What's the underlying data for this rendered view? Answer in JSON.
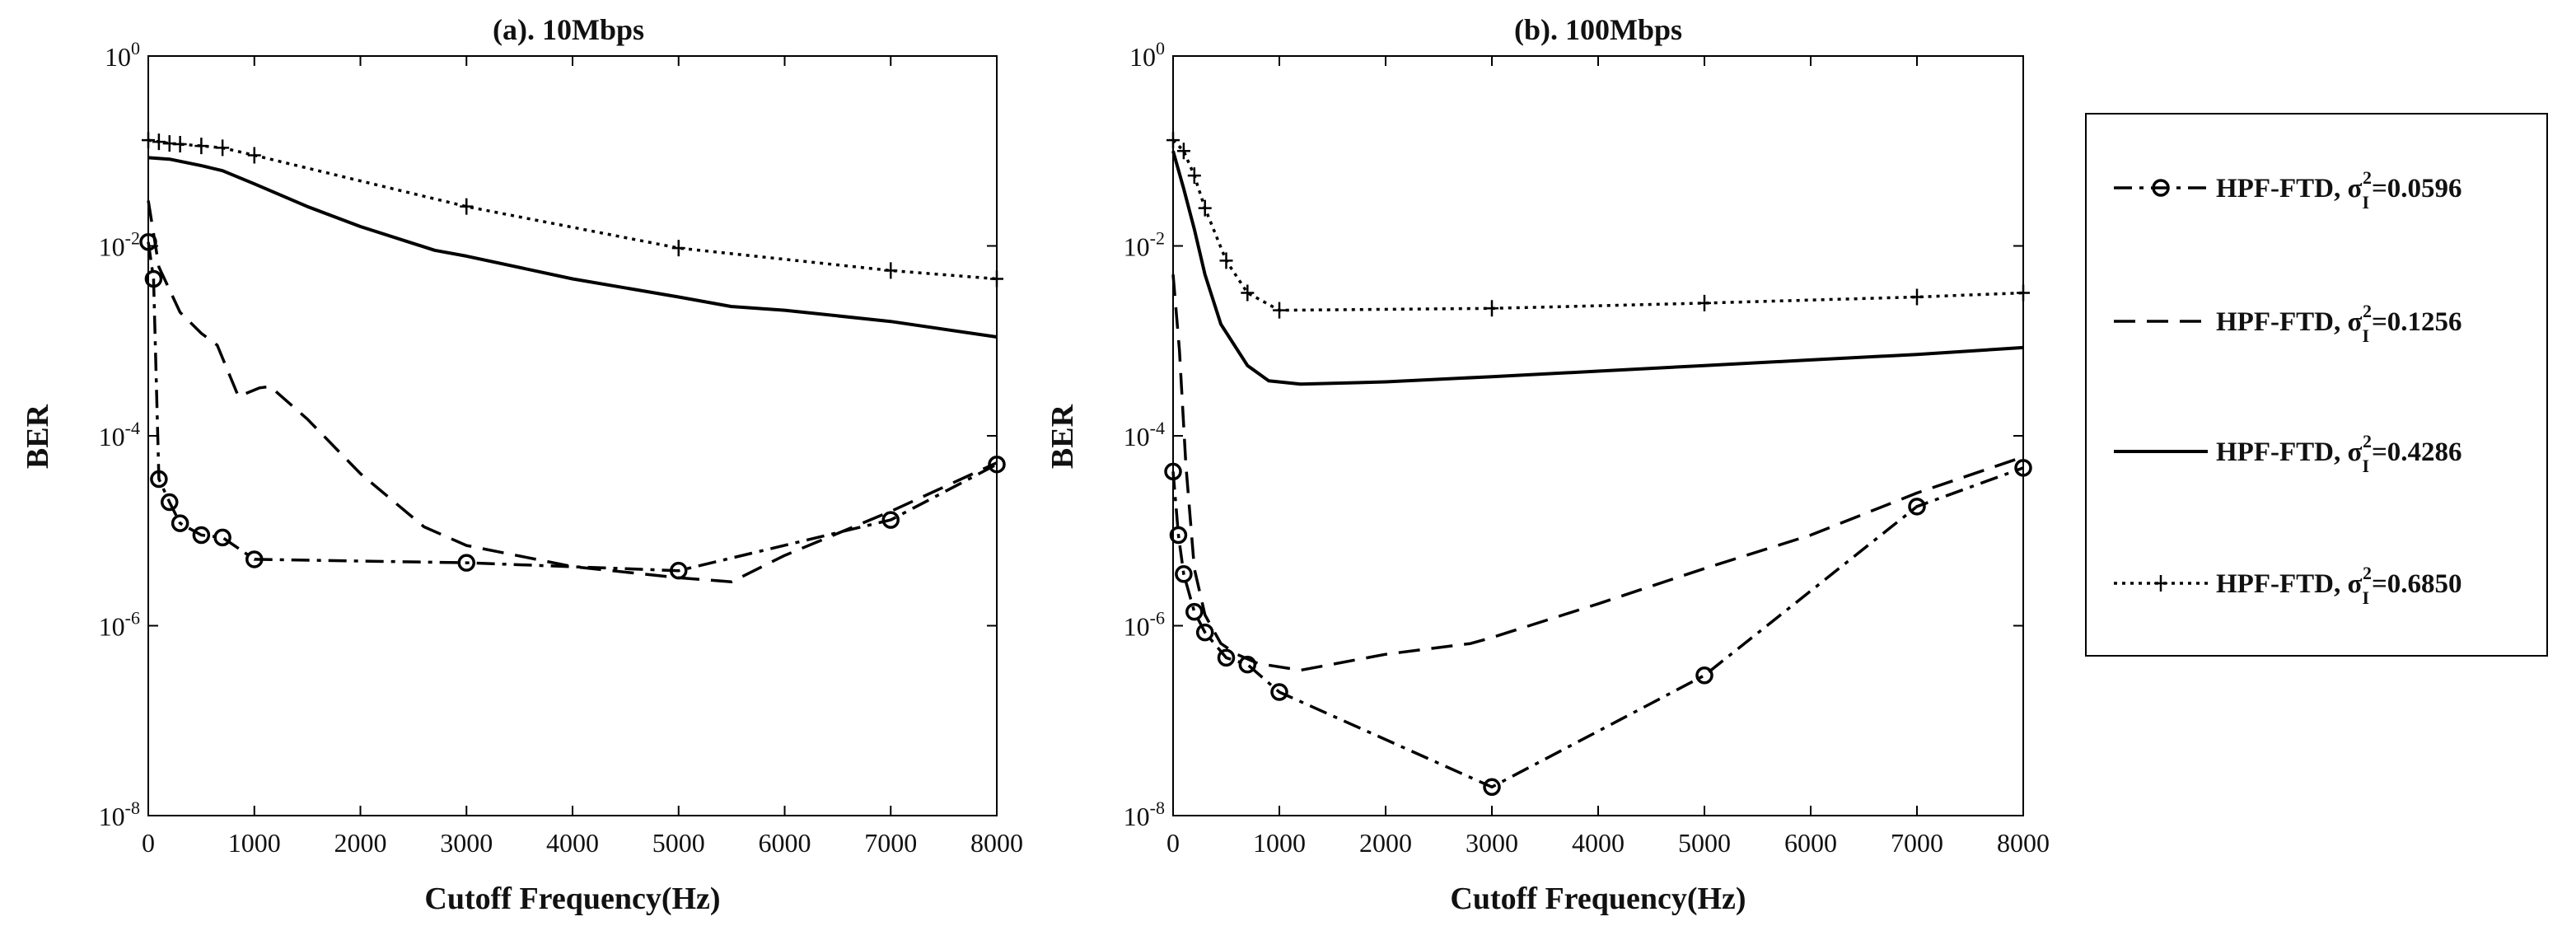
{
  "chart_data": [
    {
      "type": "line",
      "title": "(a). 10Mbps",
      "xlabel": "Cutoff Frequency(Hz)",
      "ylabel": "BER",
      "xlim": [
        0,
        8000
      ],
      "ylim_log10": [
        -8,
        0
      ],
      "yscale": "log",
      "xticks": [
        "0",
        "1000",
        "2000",
        "3000",
        "4000",
        "5000",
        "6000",
        "7000",
        "8000"
      ],
      "yticks": [
        {
          "base": "10",
          "exp": "0"
        },
        {
          "base": "10",
          "exp": "-2"
        },
        {
          "base": "10",
          "exp": "-4"
        },
        {
          "base": "10",
          "exp": "-6"
        },
        {
          "base": "10",
          "exp": "-8"
        }
      ],
      "series": [
        {
          "name": "HPF-FTD, σI²=0.0596",
          "style": "dashdot-circle",
          "x": [
            0,
            50,
            100,
            200,
            300,
            500,
            700,
            1000,
            3000,
            5000,
            7000,
            8000
          ],
          "y": [
            0.011,
            0.0045,
            3.5e-05,
            2e-05,
            1.2e-05,
            9e-06,
            8.5e-06,
            5e-06,
            4.6e-06,
            3.8e-06,
            1.3e-05,
            5e-05
          ],
          "markers_x": [
            0,
            50,
            100,
            200,
            300,
            500,
            700,
            1000,
            3000,
            5000,
            7000,
            8000
          ]
        },
        {
          "name": "HPF-FTD, σI²=0.1256",
          "style": "dashed",
          "x": [
            0,
            100,
            300,
            500,
            650,
            850,
            1050,
            1150,
            1500,
            2000,
            2600,
            3000,
            4000,
            5000,
            5500,
            6000,
            7000,
            8000
          ],
          "y": [
            0.03,
            0.006,
            0.002,
            0.0012,
            0.0009,
            0.00026,
            0.00032,
            0.00033,
            0.00015,
            4e-05,
            1.1e-05,
            7e-06,
            4.2e-06,
            3.2e-06,
            2.9e-06,
            5.5e-06,
            1.6e-05,
            5.2e-05
          ]
        },
        {
          "name": "HPF-FTD, σI²=0.4286",
          "style": "solid",
          "x": [
            0,
            200,
            500,
            700,
            1000,
            1500,
            2000,
            2700,
            3000,
            4000,
            5000,
            5500,
            6000,
            7000,
            8000
          ],
          "y": [
            0.085,
            0.082,
            0.07,
            0.062,
            0.045,
            0.026,
            0.016,
            0.009,
            0.0078,
            0.0045,
            0.0029,
            0.0023,
            0.0021,
            0.0016,
            0.0011
          ]
        },
        {
          "name": "HPF-FTD, σI²=0.6850",
          "style": "dotted-plus",
          "x": [
            0,
            100,
            200,
            300,
            500,
            700,
            1000,
            3000,
            5000,
            7000,
            8000
          ],
          "y": [
            0.13,
            0.125,
            0.12,
            0.118,
            0.113,
            0.108,
            0.09,
            0.026,
            0.0095,
            0.0055,
            0.0045
          ],
          "markers_x": [
            0,
            100,
            200,
            300,
            500,
            700,
            1000,
            3000,
            5000,
            7000,
            8000
          ]
        }
      ]
    },
    {
      "type": "line",
      "title": "(b). 100Mbps",
      "xlabel": "Cutoff Frequency(Hz)",
      "ylabel": "BER",
      "xlim": [
        0,
        8000
      ],
      "ylim_log10": [
        -8,
        0
      ],
      "yscale": "log",
      "xticks": [
        "0",
        "1000",
        "2000",
        "3000",
        "4000",
        "5000",
        "6000",
        "7000",
        "8000"
      ],
      "yticks": [
        {
          "base": "10",
          "exp": "0"
        },
        {
          "base": "10",
          "exp": "-2"
        },
        {
          "base": "10",
          "exp": "-4"
        },
        {
          "base": "10",
          "exp": "-6"
        },
        {
          "base": "10",
          "exp": "-8"
        }
      ],
      "series": [
        {
          "name": "HPF-FTD, σI²=0.0596",
          "style": "dashdot-circle",
          "x": [
            0,
            50,
            100,
            200,
            300,
            500,
            700,
            1000,
            3000,
            5000,
            7000,
            8000
          ],
          "y": [
            4.2e-05,
            9e-06,
            3.5e-06,
            1.4e-06,
            8.5e-07,
            4.6e-07,
            3.9e-07,
            2e-07,
            2e-08,
            3e-07,
            1.8e-05,
            4.6e-05
          ],
          "markers_x": [
            0,
            50,
            100,
            200,
            300,
            500,
            700,
            1000,
            3000,
            5000,
            7000,
            8000
          ]
        },
        {
          "name": "HPF-FTD, σI²=0.1256",
          "style": "dashed",
          "x": [
            0,
            60,
            120,
            200,
            300,
            450,
            600,
            800,
            1200,
            2000,
            2800,
            3000,
            4000,
            5000,
            6000,
            7000,
            8000
          ],
          "y": [
            0.005,
            0.0008,
            5e-05,
            4e-06,
            1.3e-06,
            6.5e-07,
            5e-07,
            4e-07,
            3.4e-07,
            5e-07,
            6.5e-07,
            7.5e-07,
            1.7e-06,
            4e-06,
            9e-06,
            2.5e-05,
            6e-05
          ]
        },
        {
          "name": "HPF-FTD, σI²=0.4286",
          "style": "solid",
          "x": [
            0,
            100,
            200,
            300,
            450,
            700,
            900,
            1200,
            2000,
            3000,
            4000,
            5000,
            6000,
            7000,
            8000
          ],
          "y": [
            0.1,
            0.04,
            0.015,
            0.005,
            0.0015,
            0.00055,
            0.00038,
            0.00035,
            0.00037,
            0.00042,
            0.00048,
            0.00055,
            0.00063,
            0.00072,
            0.00085
          ]
        },
        {
          "name": "HPF-FTD, σI²=0.6850",
          "style": "dotted-plus",
          "x": [
            0,
            100,
            200,
            300,
            500,
            700,
            1000,
            3000,
            5000,
            7000,
            8000
          ],
          "y": [
            0.13,
            0.1,
            0.055,
            0.025,
            0.007,
            0.0032,
            0.0021,
            0.0022,
            0.0025,
            0.0029,
            0.0032
          ],
          "markers_x": [
            0,
            100,
            200,
            300,
            500,
            700,
            1000,
            3000,
            5000,
            7000,
            8000
          ]
        }
      ]
    }
  ],
  "legend": {
    "position": "right",
    "entries": [
      {
        "prefix": "HPF-FTD, σ",
        "sub": "I",
        "sup": "2",
        "value": "=0.0596",
        "style": "dashdot-circle"
      },
      {
        "prefix": "HPF-FTD, σ",
        "sub": "I",
        "sup": "2",
        "value": "=0.1256",
        "style": "dashed"
      },
      {
        "prefix": "HPF-FTD, σ",
        "sub": "I",
        "sup": "2",
        "value": "=0.4286",
        "style": "solid"
      },
      {
        "prefix": "HPF-FTD, σ",
        "sub": "I",
        "sup": "2",
        "value": "=0.6850",
        "style": "dotted-plus"
      }
    ]
  }
}
